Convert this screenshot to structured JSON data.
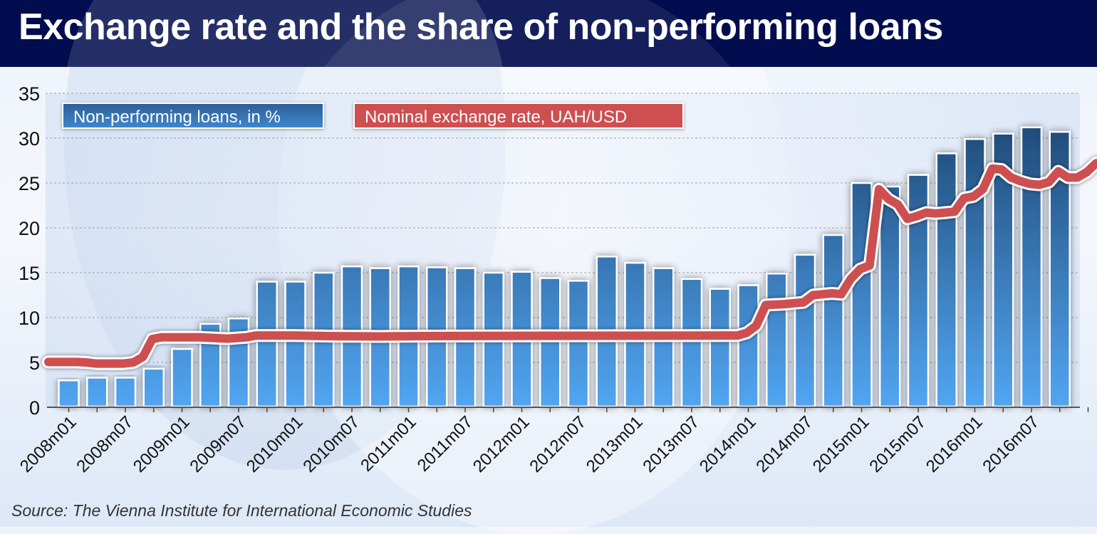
{
  "title": "Exchange rate and the share of non-performing loans",
  "source": "Source: The Vienna Institute for International Economic Studies",
  "colors": {
    "title_bg": "#020d4f",
    "bar_top": "#1f4a78",
    "bar_bottom": "#52a6f2",
    "line": "#cd4f50",
    "line_outline": "#ffffff"
  },
  "chart_data": {
    "type": "bar+line",
    "title": "Exchange rate and the share of non-performing loans",
    "xlabel": "",
    "ylabel": "",
    "ylim": [
      0,
      35
    ],
    "yticks": [
      0,
      5,
      10,
      15,
      20,
      25,
      30,
      35
    ],
    "grid": true,
    "legend_placement": "top-left",
    "x_tick_labels": [
      "2008m01",
      "2008m07",
      "2009m01",
      "2009m07",
      "2010m01",
      "2010m07",
      "2011m01",
      "2011m07",
      "2012m01",
      "2012m07",
      "2013m01",
      "2013m07",
      "2014m01",
      "2014m07",
      "2015m01",
      "2015m07",
      "2016m01",
      "2016m07"
    ],
    "series": [
      {
        "name": "Non-performing loans, in %",
        "type": "bar",
        "frequency": "quarterly",
        "start": "2008Q1",
        "values": [
          3.0,
          3.3,
          3.3,
          4.3,
          6.5,
          9.3,
          9.9,
          14.0,
          14.0,
          15.0,
          15.7,
          15.5,
          15.7,
          15.6,
          15.5,
          15.0,
          15.1,
          14.4,
          14.1,
          16.8,
          16.1,
          15.5,
          14.3,
          13.2,
          13.6,
          14.9,
          17.0,
          19.2,
          25.0,
          24.6,
          25.9,
          28.3,
          29.9,
          30.5,
          31.2,
          30.7
        ]
      },
      {
        "name": "Nominal exchange rate, UAH/USD",
        "type": "line",
        "frequency": "monthly",
        "start": "2008m01",
        "points": [
          [
            0,
            5.05
          ],
          [
            3,
            5.05
          ],
          [
            4,
            5.0
          ],
          [
            5,
            4.87
          ],
          [
            8,
            4.87
          ],
          [
            9,
            5.0
          ],
          [
            10,
            5.6
          ],
          [
            11,
            7.6
          ],
          [
            12,
            7.8
          ],
          [
            16,
            7.8
          ],
          [
            18,
            7.7
          ],
          [
            19,
            7.65
          ],
          [
            21,
            7.8
          ],
          [
            22,
            8.0
          ],
          [
            26,
            8.0
          ],
          [
            30,
            7.93
          ],
          [
            35,
            7.9
          ],
          [
            39,
            7.93
          ],
          [
            48,
            7.96
          ],
          [
            60,
            7.98
          ],
          [
            72,
            7.99
          ],
          [
            73,
            7.99
          ],
          [
            74,
            8.3
          ],
          [
            75,
            9.1
          ],
          [
            76,
            11.4
          ],
          [
            78,
            11.5
          ],
          [
            79,
            11.6
          ],
          [
            80,
            11.7
          ],
          [
            81,
            12.5
          ],
          [
            83,
            12.7
          ],
          [
            84,
            12.6
          ],
          [
            85,
            14.3
          ],
          [
            86,
            15.4
          ],
          [
            87,
            15.8
          ],
          [
            88,
            24.3
          ],
          [
            89,
            23.2
          ],
          [
            90,
            22.6
          ],
          [
            91,
            21.0
          ],
          [
            92,
            21.3
          ],
          [
            93,
            21.7
          ],
          [
            94,
            21.6
          ],
          [
            95,
            21.7
          ],
          [
            96,
            21.8
          ],
          [
            97,
            23.3
          ],
          [
            98,
            23.5
          ],
          [
            99,
            24.3
          ],
          [
            100,
            26.6
          ],
          [
            101,
            26.5
          ],
          [
            102,
            25.6
          ],
          [
            103,
            25.2
          ],
          [
            104,
            24.9
          ],
          [
            105,
            24.8
          ],
          [
            106,
            25.1
          ],
          [
            107,
            26.3
          ],
          [
            108,
            25.6
          ],
          [
            109,
            25.6
          ],
          [
            110,
            26.2
          ],
          [
            111,
            27.2
          ],
          [
            112,
            27.1
          ],
          [
            113,
            27.0
          ]
        ]
      }
    ]
  },
  "legend": {
    "npl_label": "Non-performing loans, in %",
    "fx_label": "Nominal exchange rate, UAH/USD"
  }
}
